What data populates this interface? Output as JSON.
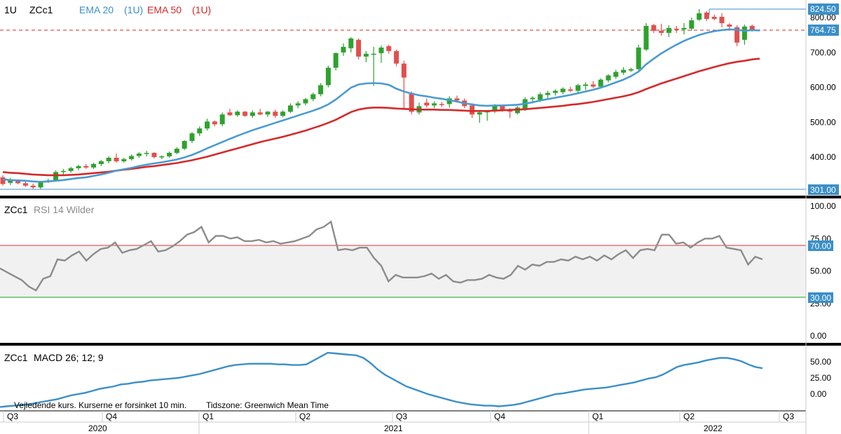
{
  "header": {
    "interval": "1U",
    "symbol": "ZCc1",
    "ema20_label": "EMA 20",
    "ema20_interval": "(1U)",
    "ema50_label": "EMA 50",
    "ema50_interval": "(1U)"
  },
  "rsi_panel": {
    "title_symbol": "ZCc1",
    "title_study": "RSI 14 Wilder"
  },
  "macd_panel": {
    "title_symbol": "ZCc1",
    "title_study": "MACD 26; 12; 9"
  },
  "footer": {
    "delay_note": "Vejledende kurs. Kurserne er forsinket 10 min.",
    "timezone_note": "Tidszone: Greenwich Mean Time"
  },
  "colors": {
    "up": "#2ea12e",
    "down": "#e0504d",
    "ema20": "#4a9bd1",
    "ema50": "#d42a2a",
    "rsi": "#8c8c8c",
    "rsi_overbought": "#e05a5a",
    "rsi_oversold": "#3cb34a",
    "macd": "#3a8fc8",
    "label_blue": "#3a8fc8",
    "divider": "#000000"
  },
  "chart_data": {
    "type": "candlestick",
    "interval": "weekly",
    "price_axis": {
      "ticks": [
        "800.00",
        "700.00",
        "600.00",
        "500.00",
        "400.00"
      ],
      "range": [
        292,
        832
      ]
    },
    "price_labels": {
      "high": "824.50",
      "last": "764.75",
      "low": "301.00"
    },
    "time_axis": {
      "quarters": [
        "Q3",
        "Q4",
        "Q1",
        "Q2",
        "Q3",
        "Q4",
        "Q1",
        "Q2",
        "Q3"
      ],
      "years": [
        "2020",
        "2021",
        "2022"
      ]
    },
    "candles": [
      {
        "o": 342,
        "h": 348,
        "l": 318,
        "c": 323
      },
      {
        "o": 326,
        "h": 340,
        "l": 320,
        "c": 333
      },
      {
        "o": 333,
        "h": 336,
        "l": 322,
        "c": 325
      },
      {
        "o": 325,
        "h": 330,
        "l": 314,
        "c": 318
      },
      {
        "o": 318,
        "h": 324,
        "l": 309,
        "c": 313
      },
      {
        "o": 313,
        "h": 332,
        "l": 309,
        "c": 330
      },
      {
        "o": 330,
        "h": 338,
        "l": 326,
        "c": 333
      },
      {
        "o": 333,
        "h": 362,
        "l": 330,
        "c": 357
      },
      {
        "o": 357,
        "h": 366,
        "l": 350,
        "c": 360
      },
      {
        "o": 360,
        "h": 372,
        "l": 355,
        "c": 368
      },
      {
        "o": 368,
        "h": 378,
        "l": 362,
        "c": 374
      },
      {
        "o": 374,
        "h": 380,
        "l": 366,
        "c": 370
      },
      {
        "o": 370,
        "h": 384,
        "l": 366,
        "c": 380
      },
      {
        "o": 380,
        "h": 392,
        "l": 374,
        "c": 388
      },
      {
        "o": 388,
        "h": 402,
        "l": 382,
        "c": 398
      },
      {
        "o": 398,
        "h": 410,
        "l": 384,
        "c": 388
      },
      {
        "o": 388,
        "h": 398,
        "l": 384,
        "c": 394
      },
      {
        "o": 394,
        "h": 408,
        "l": 390,
        "c": 403
      },
      {
        "o": 403,
        "h": 414,
        "l": 398,
        "c": 410
      },
      {
        "o": 410,
        "h": 418,
        "l": 402,
        "c": 412
      },
      {
        "o": 412,
        "h": 414,
        "l": 396,
        "c": 400
      },
      {
        "o": 400,
        "h": 405,
        "l": 394,
        "c": 402
      },
      {
        "o": 402,
        "h": 416,
        "l": 398,
        "c": 412
      },
      {
        "o": 412,
        "h": 428,
        "l": 408,
        "c": 424
      },
      {
        "o": 424,
        "h": 448,
        "l": 420,
        "c": 446
      },
      {
        "o": 446,
        "h": 472,
        "l": 440,
        "c": 468
      },
      {
        "o": 468,
        "h": 488,
        "l": 460,
        "c": 482
      },
      {
        "o": 482,
        "h": 510,
        "l": 476,
        "c": 502
      },
      {
        "o": 502,
        "h": 505,
        "l": 488,
        "c": 494
      },
      {
        "o": 494,
        "h": 528,
        "l": 488,
        "c": 522
      },
      {
        "o": 528,
        "h": 538,
        "l": 518,
        "c": 520
      },
      {
        "o": 520,
        "h": 534,
        "l": 516,
        "c": 530
      },
      {
        "o": 530,
        "h": 532,
        "l": 515,
        "c": 518
      },
      {
        "o": 518,
        "h": 534,
        "l": 512,
        "c": 528
      },
      {
        "o": 528,
        "h": 538,
        "l": 520,
        "c": 522
      },
      {
        "o": 522,
        "h": 532,
        "l": 515,
        "c": 530
      },
      {
        "o": 530,
        "h": 536,
        "l": 512,
        "c": 518
      },
      {
        "o": 518,
        "h": 534,
        "l": 514,
        "c": 530
      },
      {
        "o": 530,
        "h": 554,
        "l": 526,
        "c": 548
      },
      {
        "o": 548,
        "h": 560,
        "l": 540,
        "c": 554
      },
      {
        "o": 554,
        "h": 570,
        "l": 548,
        "c": 566
      },
      {
        "o": 566,
        "h": 585,
        "l": 560,
        "c": 580
      },
      {
        "o": 580,
        "h": 612,
        "l": 574,
        "c": 606
      },
      {
        "o": 606,
        "h": 662,
        "l": 600,
        "c": 656
      },
      {
        "o": 656,
        "h": 700,
        "l": 648,
        "c": 698
      },
      {
        "o": 700,
        "h": 726,
        "l": 690,
        "c": 716
      },
      {
        "o": 712,
        "h": 744,
        "l": 700,
        "c": 740
      },
      {
        "o": 736,
        "h": 740,
        "l": 680,
        "c": 688
      },
      {
        "o": 688,
        "h": 704,
        "l": 672,
        "c": 696
      },
      {
        "o": 696,
        "h": 716,
        "l": 604,
        "c": 696
      },
      {
        "o": 698,
        "h": 720,
        "l": 670,
        "c": 714
      },
      {
        "o": 718,
        "h": 722,
        "l": 696,
        "c": 704
      },
      {
        "o": 704,
        "h": 708,
        "l": 660,
        "c": 668
      },
      {
        "o": 668,
        "h": 676,
        "l": 540,
        "c": 628
      },
      {
        "o": 584,
        "h": 588,
        "l": 522,
        "c": 530
      },
      {
        "o": 528,
        "h": 556,
        "l": 522,
        "c": 546
      },
      {
        "o": 556,
        "h": 568,
        "l": 542,
        "c": 548
      },
      {
        "o": 548,
        "h": 560,
        "l": 540,
        "c": 554
      },
      {
        "o": 552,
        "h": 558,
        "l": 544,
        "c": 550
      },
      {
        "o": 552,
        "h": 574,
        "l": 542,
        "c": 568
      },
      {
        "o": 568,
        "h": 576,
        "l": 558,
        "c": 562
      },
      {
        "o": 562,
        "h": 568,
        "l": 540,
        "c": 546
      },
      {
        "o": 548,
        "h": 554,
        "l": 512,
        "c": 522
      },
      {
        "o": 522,
        "h": 534,
        "l": 498,
        "c": 528
      },
      {
        "o": 528,
        "h": 534,
        "l": 504,
        "c": 532
      },
      {
        "o": 532,
        "h": 552,
        "l": 526,
        "c": 548
      },
      {
        "o": 548,
        "h": 550,
        "l": 530,
        "c": 536
      },
      {
        "o": 536,
        "h": 540,
        "l": 512,
        "c": 530
      },
      {
        "o": 526,
        "h": 546,
        "l": 522,
        "c": 542
      },
      {
        "o": 538,
        "h": 572,
        "l": 532,
        "c": 566
      },
      {
        "o": 566,
        "h": 574,
        "l": 554,
        "c": 570
      },
      {
        "o": 564,
        "h": 586,
        "l": 558,
        "c": 580
      },
      {
        "o": 578,
        "h": 590,
        "l": 568,
        "c": 584
      },
      {
        "o": 584,
        "h": 594,
        "l": 576,
        "c": 590
      },
      {
        "o": 586,
        "h": 600,
        "l": 580,
        "c": 596
      },
      {
        "o": 594,
        "h": 602,
        "l": 586,
        "c": 590
      },
      {
        "o": 590,
        "h": 610,
        "l": 584,
        "c": 606
      },
      {
        "o": 604,
        "h": 614,
        "l": 592,
        "c": 608
      },
      {
        "o": 608,
        "h": 618,
        "l": 598,
        "c": 602
      },
      {
        "o": 602,
        "h": 626,
        "l": 596,
        "c": 622
      },
      {
        "o": 620,
        "h": 638,
        "l": 614,
        "c": 634
      },
      {
        "o": 630,
        "h": 650,
        "l": 624,
        "c": 644
      },
      {
        "o": 642,
        "h": 658,
        "l": 636,
        "c": 650
      },
      {
        "o": 648,
        "h": 656,
        "l": 644,
        "c": 652
      },
      {
        "o": 652,
        "h": 722,
        "l": 648,
        "c": 714
      },
      {
        "o": 708,
        "h": 784,
        "l": 704,
        "c": 776
      },
      {
        "o": 778,
        "h": 782,
        "l": 756,
        "c": 762
      },
      {
        "o": 762,
        "h": 782,
        "l": 748,
        "c": 756
      },
      {
        "o": 756,
        "h": 778,
        "l": 744,
        "c": 770
      },
      {
        "o": 768,
        "h": 776,
        "l": 756,
        "c": 766
      },
      {
        "o": 766,
        "h": 784,
        "l": 752,
        "c": 770
      },
      {
        "o": 768,
        "h": 800,
        "l": 762,
        "c": 792
      },
      {
        "o": 794,
        "h": 824,
        "l": 790,
        "c": 812
      },
      {
        "o": 814,
        "h": 818,
        "l": 790,
        "c": 796
      },
      {
        "o": 802,
        "h": 808,
        "l": 792,
        "c": 796
      },
      {
        "o": 802,
        "h": 812,
        "l": 772,
        "c": 784
      },
      {
        "o": 780,
        "h": 784,
        "l": 762,
        "c": 774
      },
      {
        "o": 772,
        "h": 778,
        "l": 718,
        "c": 728
      },
      {
        "o": 736,
        "h": 780,
        "l": 722,
        "c": 774
      },
      {
        "o": 776,
        "h": 780,
        "l": 760,
        "c": 764.75
      }
    ],
    "ema20": [
      336,
      334,
      333,
      332,
      330,
      329,
      330,
      332,
      334,
      337,
      340,
      342,
      346,
      350,
      355,
      361,
      365,
      369,
      374,
      378,
      382,
      385,
      389,
      393,
      399,
      406,
      415,
      425,
      434,
      443,
      452,
      461,
      469,
      477,
      484,
      491,
      498,
      505,
      512,
      519,
      526,
      533,
      541,
      551,
      565,
      582,
      599,
      608,
      611,
      612,
      611,
      607,
      596,
      588,
      582,
      577,
      574,
      570,
      567,
      563,
      559,
      554,
      551,
      548,
      547,
      548,
      548,
      549,
      550,
      553,
      557,
      562,
      566,
      570,
      574,
      578,
      583,
      588,
      593,
      599,
      606,
      614,
      622,
      632,
      645,
      666,
      682,
      697,
      710,
      722,
      733,
      742,
      750,
      756,
      761,
      764,
      766,
      765,
      762,
      764,
      763
    ],
    "ema50": [
      357,
      355,
      354,
      352,
      350,
      349,
      348,
      348,
      348,
      349,
      350,
      352,
      354,
      356,
      358,
      361,
      364,
      366,
      369,
      372,
      374,
      377,
      380,
      383,
      387,
      391,
      396,
      401,
      407,
      413,
      419,
      425,
      431,
      437,
      443,
      448,
      453,
      458,
      464,
      470,
      476,
      483,
      490,
      498,
      507,
      518,
      529,
      536,
      540,
      542,
      542,
      541,
      539,
      538,
      537,
      536,
      536,
      536,
      535,
      535,
      534,
      533,
      532,
      532,
      532,
      533,
      534,
      535,
      536,
      537,
      539,
      541,
      543,
      545,
      547,
      550,
      552,
      555,
      558,
      562,
      566,
      570,
      574,
      579,
      586,
      595,
      603,
      611,
      618,
      625,
      632,
      639,
      646,
      652,
      658,
      664,
      669,
      673,
      676,
      680,
      682
    ],
    "rsi": {
      "ticks": [
        "100.00",
        "75.00",
        "50.00",
        "25.00",
        "0.00"
      ],
      "overbought_label": "70.00",
      "oversold_label": "30.00",
      "overbought": 70,
      "oversold": 30,
      "values": [
        52,
        49,
        46,
        43,
        38,
        35,
        44,
        46,
        59,
        58,
        62,
        65,
        58,
        63,
        67,
        68,
        72,
        64,
        66,
        67,
        70,
        73,
        65,
        66,
        69,
        73,
        78,
        80,
        84,
        72,
        77,
        77,
        75,
        76,
        73,
        73,
        74,
        72,
        73,
        71,
        72,
        73,
        75,
        77,
        82,
        84,
        88,
        66,
        67,
        66,
        68,
        68,
        60,
        54,
        42,
        47,
        45,
        45,
        45,
        46,
        48,
        44,
        47,
        42,
        41,
        43,
        43,
        44,
        47,
        45,
        44,
        47,
        54,
        51,
        55,
        54,
        57,
        57,
        59,
        58,
        61,
        59,
        61,
        58,
        62,
        59,
        63,
        66,
        60,
        66,
        67,
        66,
        78,
        78,
        71,
        72,
        68,
        72,
        75,
        75,
        77,
        68,
        67,
        66,
        55,
        61,
        59
      ],
      "overbought_line_color": "#e05a5a",
      "oversold_line_color": "#3cb34a"
    },
    "macd": {
      "ticks": [
        "50.00",
        "25.00",
        "0.00"
      ],
      "values": [
        -20,
        -19,
        -18,
        -17,
        -16,
        -14,
        -12,
        -10,
        -8,
        -5,
        -2,
        0,
        2,
        5,
        8,
        10,
        12,
        15,
        16,
        18,
        19,
        21,
        22,
        23,
        24,
        25,
        27,
        29,
        31,
        34,
        37,
        40,
        43,
        45,
        46,
        47,
        47,
        47,
        47,
        46,
        46,
        45,
        45,
        46,
        52,
        58,
        64,
        63,
        62,
        61,
        60,
        56,
        48,
        38,
        30,
        24,
        18,
        12,
        8,
        4,
        0,
        -3,
        -6,
        -9,
        -12,
        -14,
        -16,
        -17,
        -18,
        -18,
        -19,
        -18,
        -17,
        -15,
        -12,
        -9,
        -6,
        -3,
        0,
        1,
        3,
        5,
        7,
        8,
        9,
        10,
        12,
        14,
        16,
        18,
        21,
        24,
        26,
        30,
        36,
        42,
        45,
        47,
        49,
        52,
        54,
        56,
        56,
        54,
        51,
        46,
        42,
        40
      ]
    }
  }
}
